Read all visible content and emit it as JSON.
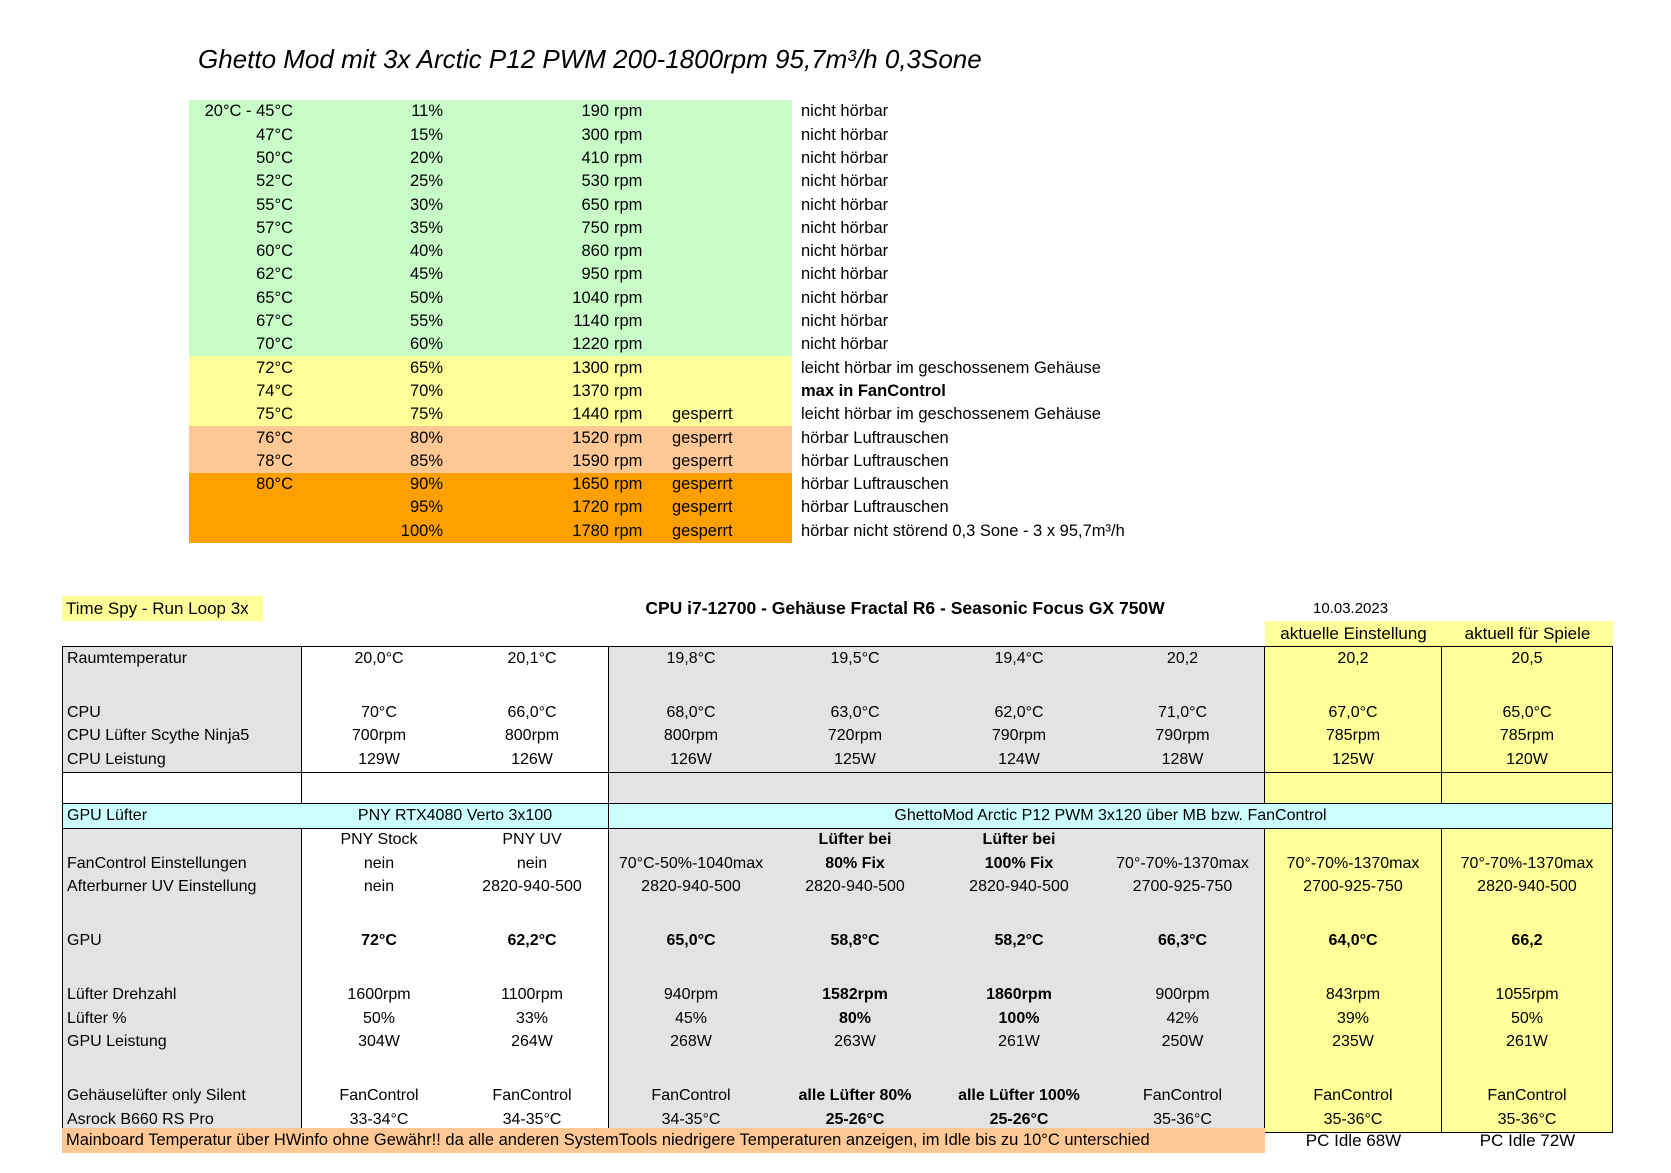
{
  "title": "Ghetto Mod mit 3x Arctic P12 PWM 200-1800rpm 95,7m³/h 0,3Sone",
  "colors": {
    "zone_green": "#c8fdc8",
    "zone_yellow": "#ffff99",
    "zone_light_orange": "#ffc894",
    "zone_orange": "#ffa000",
    "row_cyan": "#ccffff",
    "cell_grey": "#e3e3e3",
    "highlight_yellow": "#ffff99",
    "banner_orange": "#ffc894"
  },
  "fan_curve": {
    "unit_label": "rpm",
    "rows": [
      {
        "temp": "20°C - 45°C",
        "pct": "11%",
        "rpm": "190",
        "lock": "",
        "note": "nicht hörbar",
        "zone": "green",
        "note_bold": false
      },
      {
        "temp": "47°C",
        "pct": "15%",
        "rpm": "300",
        "lock": "",
        "note": "nicht hörbar",
        "zone": "green",
        "note_bold": false
      },
      {
        "temp": "50°C",
        "pct": "20%",
        "rpm": "410",
        "lock": "",
        "note": "nicht hörbar",
        "zone": "green",
        "note_bold": false
      },
      {
        "temp": "52°C",
        "pct": "25%",
        "rpm": "530",
        "lock": "",
        "note": "nicht hörbar",
        "zone": "green",
        "note_bold": false
      },
      {
        "temp": "55°C",
        "pct": "30%",
        "rpm": "650",
        "lock": "",
        "note": "nicht hörbar",
        "zone": "green",
        "note_bold": false
      },
      {
        "temp": "57°C",
        "pct": "35%",
        "rpm": "750",
        "lock": "",
        "note": "nicht hörbar",
        "zone": "green",
        "note_bold": false
      },
      {
        "temp": "60°C",
        "pct": "40%",
        "rpm": "860",
        "lock": "",
        "note": "nicht hörbar",
        "zone": "green",
        "note_bold": false
      },
      {
        "temp": "62°C",
        "pct": "45%",
        "rpm": "950",
        "lock": "",
        "note": "nicht hörbar",
        "zone": "green",
        "note_bold": false
      },
      {
        "temp": "65°C",
        "pct": "50%",
        "rpm": "1040",
        "lock": "",
        "note": "nicht hörbar",
        "zone": "green",
        "note_bold": false
      },
      {
        "temp": "67°C",
        "pct": "55%",
        "rpm": "1140",
        "lock": "",
        "note": "nicht hörbar",
        "zone": "green",
        "note_bold": false
      },
      {
        "temp": "70°C",
        "pct": "60%",
        "rpm": "1220",
        "lock": "",
        "note": "nicht hörbar",
        "zone": "green",
        "note_bold": false
      },
      {
        "temp": "72°C",
        "pct": "65%",
        "rpm": "1300",
        "lock": "",
        "note": "leicht hörbar im geschossenem Gehäuse",
        "zone": "yellow",
        "note_bold": false
      },
      {
        "temp": "74°C",
        "pct": "70%",
        "rpm": "1370",
        "lock": "",
        "note": "max in FanControl",
        "zone": "yellow",
        "note_bold": true
      },
      {
        "temp": "75°C",
        "pct": "75%",
        "rpm": "1440",
        "lock": "gesperrt",
        "note": "leicht hörbar im geschossenem Gehäuse",
        "zone": "yellow",
        "note_bold": false
      },
      {
        "temp": "76°C",
        "pct": "80%",
        "rpm": "1520",
        "lock": "gesperrt",
        "note": "hörbar Luftrauschen",
        "zone": "peach",
        "note_bold": false
      },
      {
        "temp": "78°C",
        "pct": "85%",
        "rpm": "1590",
        "lock": "gesperrt",
        "note": "hörbar Luftrauschen",
        "zone": "peach",
        "note_bold": false
      },
      {
        "temp": "80°C",
        "pct": "90%",
        "rpm": "1650",
        "lock": "gesperrt",
        "note": "hörbar Luftrauschen",
        "zone": "orange",
        "note_bold": false
      },
      {
        "temp": "",
        "pct": "95%",
        "rpm": "1720",
        "lock": "gesperrt",
        "note": "hörbar Luftrauschen",
        "zone": "orange",
        "note_bold": false
      },
      {
        "temp": "",
        "pct": "100%",
        "rpm": "1780",
        "lock": "gesperrt",
        "note": "hörbar nicht störend 0,3 Sone - 3 x 95,7m³/h",
        "zone": "orange",
        "note_bold": false
      }
    ]
  },
  "benchmark": {
    "run_label": "Time Spy - Run Loop 3x",
    "header": "CPU i7-12700 - Gehäuse Fractal R6 - Seasonic Focus GX 750W",
    "date": "10.03.2023",
    "col_highlight_1": "aktuelle Einstellung",
    "col_highlight_2": "aktuell für Spiele",
    "gpu_fan_row": {
      "label": "GPU Lüfter",
      "left": "PNY RTX4080 Verto 3x100",
      "right": "GhettoMod Arctic P12 PWM 3x120 über MB bzw. FanControl"
    },
    "rows": [
      {
        "type": "data",
        "label": "Raumtemperatur",
        "values": [
          "20,0°C",
          "20,1°C",
          "19,8°C",
          "19,5°C",
          "19,4°C",
          "20,2",
          "20,2",
          "20,5"
        ],
        "bold": []
      },
      {
        "type": "blank",
        "label": "",
        "values": [
          "",
          "",
          "",
          "",
          "",
          "",
          "",
          ""
        ],
        "bold": []
      },
      {
        "type": "data",
        "label": "CPU",
        "values": [
          "70°C",
          "66,0°C",
          "68,0°C",
          "63,0°C",
          "62,0°C",
          "71,0°C",
          "67,0°C",
          "65,0°C"
        ],
        "bold": []
      },
      {
        "type": "data",
        "label": "CPU Lüfter Scythe Ninja5",
        "values": [
          "700rpm",
          "800rpm",
          "800rpm",
          "720rpm",
          "790rpm",
          "790rpm",
          "785rpm",
          "785rpm"
        ],
        "bold": []
      },
      {
        "type": "data",
        "label": "CPU Leistung",
        "values": [
          "129W",
          "126W",
          "126W",
          "125W",
          "124W",
          "128W",
          "125W",
          "120W"
        ],
        "bold": []
      },
      {
        "type": "gap",
        "label": "",
        "values": [
          "",
          "",
          "",
          "",
          "",
          "",
          "",
          ""
        ],
        "bold": []
      },
      {
        "type": "fanrow",
        "label": "",
        "values": [
          "",
          "",
          "",
          "",
          "",
          "",
          "",
          ""
        ],
        "bold": []
      },
      {
        "type": "subhead",
        "label": "",
        "values": [
          "PNY Stock",
          "PNY UV",
          "",
          "Lüfter bei",
          "Lüfter bei",
          "",
          "",
          ""
        ],
        "bold": [
          3,
          4
        ]
      },
      {
        "type": "data",
        "label": "FanControl Einstellungen",
        "values": [
          "nein",
          "nein",
          "70°C-50%-1040max",
          "80% Fix",
          "100% Fix",
          "70°-70%-1370max",
          "70°-70%-1370max",
          "70°-70%-1370max"
        ],
        "bold": [
          3,
          4
        ]
      },
      {
        "type": "data",
        "label": "Afterburner UV Einstellung",
        "values": [
          "nein",
          "2820-940-500",
          "2820-940-500",
          "2820-940-500",
          "2820-940-500",
          "2700-925-750",
          "2700-925-750",
          "2820-940-500"
        ],
        "bold": []
      },
      {
        "type": "blank",
        "label": "",
        "values": [
          "",
          "",
          "",
          "",
          "",
          "",
          "",
          ""
        ],
        "bold": []
      },
      {
        "type": "data",
        "label": "GPU",
        "values": [
          "72°C",
          "62,2°C",
          "65,0°C",
          "58,8°C",
          "58,2°C",
          "66,3°C",
          "64,0°C",
          "66,2"
        ],
        "bold": [
          0,
          1,
          2,
          3,
          4,
          5,
          6,
          7
        ]
      },
      {
        "type": "blank",
        "label": "",
        "values": [
          "",
          "",
          "",
          "",
          "",
          "",
          "",
          ""
        ],
        "bold": []
      },
      {
        "type": "data",
        "label": "Lüfter Drehzahl",
        "values": [
          "1600rpm",
          "1100rpm",
          "940rpm",
          "1582rpm",
          "1860rpm",
          "900rpm",
          "843rpm",
          "1055rpm"
        ],
        "bold": [
          3,
          4
        ]
      },
      {
        "type": "data",
        "label": "Lüfter %",
        "values": [
          "50%",
          "33%",
          "45%",
          "80%",
          "100%",
          "42%",
          "39%",
          "50%"
        ],
        "bold": [
          3,
          4
        ]
      },
      {
        "type": "data",
        "label": "GPU Leistung",
        "values": [
          "304W",
          "264W",
          "268W",
          "263W",
          "261W",
          "250W",
          "235W",
          "261W"
        ],
        "bold": []
      },
      {
        "type": "blank",
        "label": "",
        "values": [
          "",
          "",
          "",
          "",
          "",
          "",
          "",
          ""
        ],
        "bold": []
      },
      {
        "type": "data",
        "label": "Gehäuselüfter only Silent",
        "values": [
          "FanControl",
          "FanControl",
          "FanControl",
          "alle Lüfter 80%",
          "alle Lüfter 100%",
          "FanControl",
          "FanControl",
          "FanControl"
        ],
        "bold": [
          3,
          4
        ]
      },
      {
        "type": "data",
        "label": "Asrock B660 RS Pro",
        "values": [
          "33-34°C",
          "34-35°C",
          "34-35°C",
          "25-26°C",
          "25-26°C",
          "35-36°C",
          "35-36°C",
          "35-36°C"
        ],
        "bold": [
          3,
          4
        ]
      }
    ],
    "banner": "Mainboard Temperatur über HWinfo ohne Gewähr!! da alle anderen SystemTools niedrigere Temperaturen anzeigen, im Idle bis zu 10°C unterschied",
    "pc_idle_1": "PC Idle 68W",
    "pc_idle_2": "PC Idle 72W"
  }
}
